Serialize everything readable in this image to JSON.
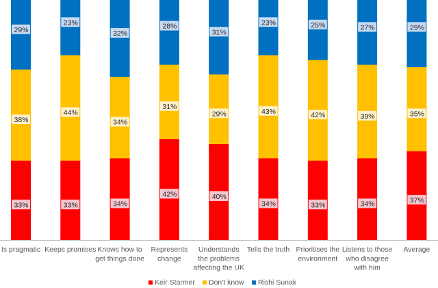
{
  "chart_data": {
    "type": "bar",
    "stacked": true,
    "normalized": true,
    "title": "",
    "xlabel": "",
    "ylabel": "",
    "ylim": [
      0,
      100
    ],
    "grid": false,
    "legend_position": "bottom",
    "categories": [
      [
        "Is pragmatic"
      ],
      [
        "Keeps promises"
      ],
      [
        "Knows how to",
        "get things done"
      ],
      [
        "Represents",
        "change"
      ],
      [
        "Understands",
        "the problems",
        "affecting the UK"
      ],
      [
        "Tells the truth"
      ],
      [
        "Prioritises the",
        "environment"
      ],
      [
        "Listens to those",
        "who disagree",
        "with him"
      ],
      [
        "Average"
      ]
    ],
    "series": [
      {
        "name": "Keir Starmer",
        "color": "#ff0000",
        "label_bg": "#f4c7d0",
        "values": [
          33,
          33,
          34,
          42,
          40,
          34,
          33,
          34,
          37
        ]
      },
      {
        "name": "Don't know",
        "color": "#ffc000",
        "label_bg": "#fdf1cc",
        "values": [
          38,
          44,
          34,
          31,
          29,
          43,
          42,
          39,
          35
        ]
      },
      {
        "name": "Rishi Sunak",
        "color": "#0070c0",
        "label_bg": "#c5d9f1",
        "values": [
          29,
          23,
          32,
          28,
          31,
          23,
          25,
          27,
          29
        ]
      }
    ],
    "value_suffix": "%"
  }
}
